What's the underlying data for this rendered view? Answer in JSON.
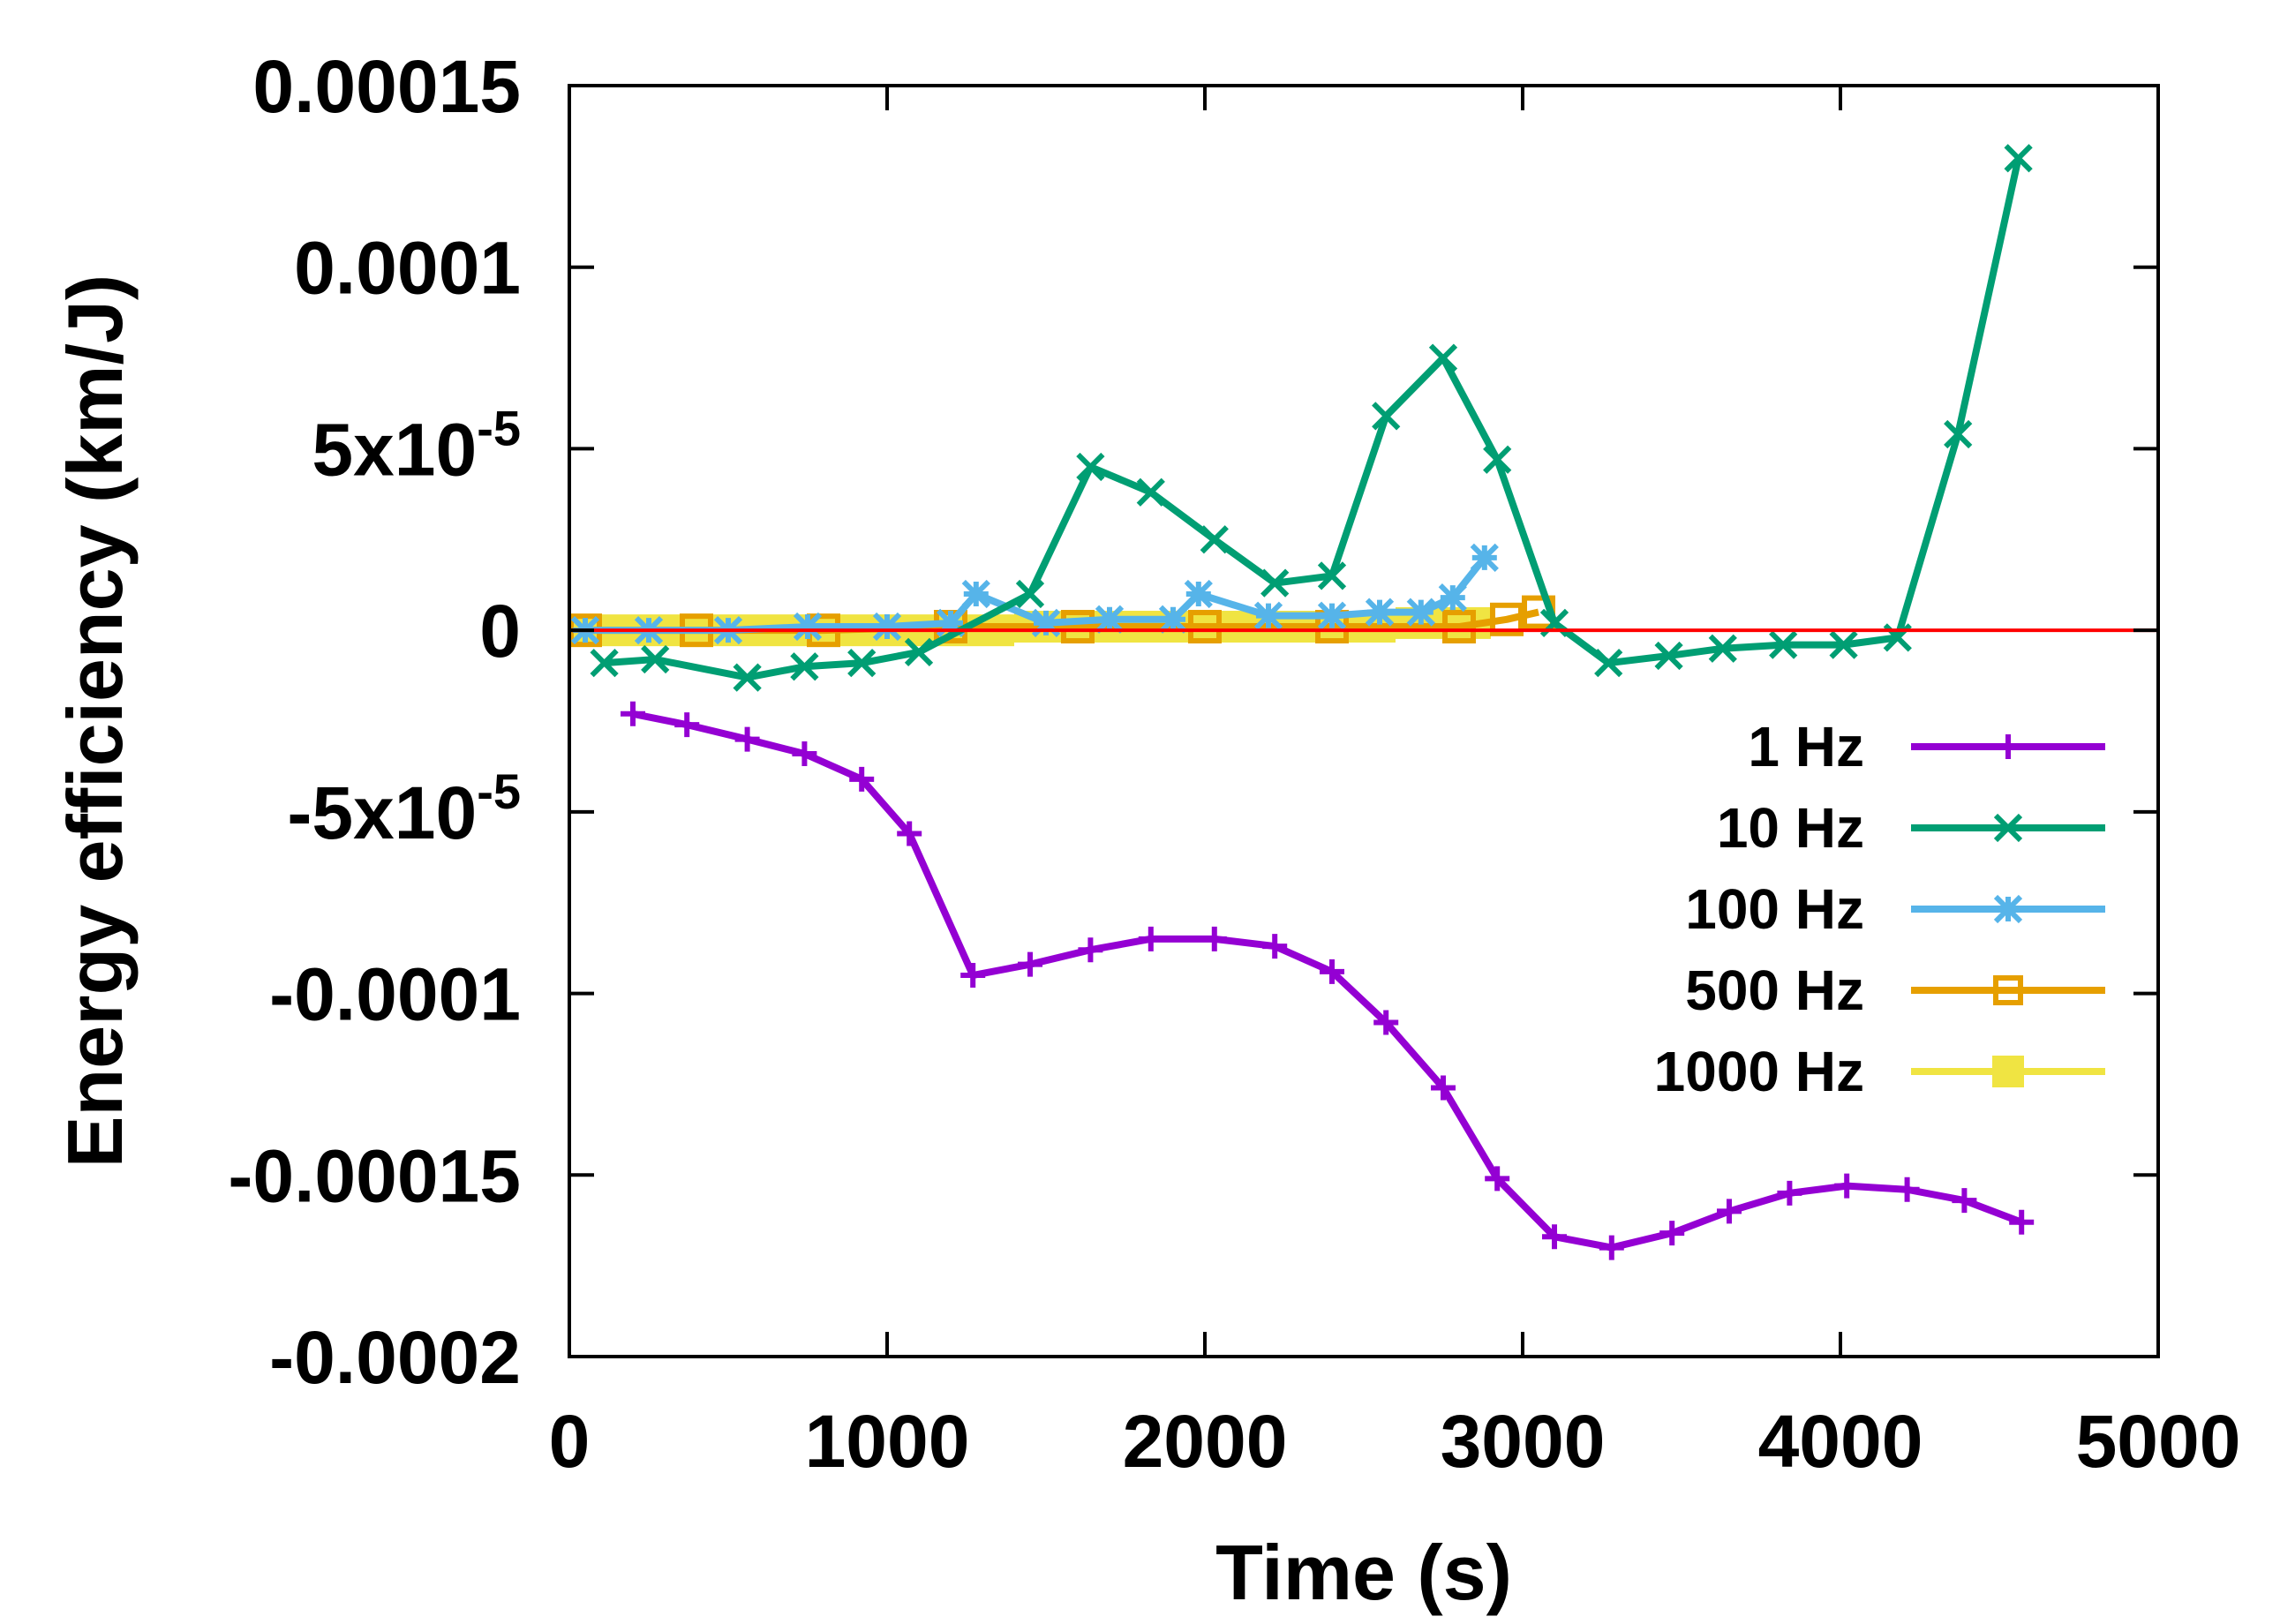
{
  "chart_data": {
    "type": "line",
    "title": "",
    "xlabel": "Time (s)",
    "ylabel": "Energy efficiency (km/J)",
    "xlim": [
      0,
      5000
    ],
    "ylim": [
      -0.0002,
      0.00015
    ],
    "grid": false,
    "legend_position": "bottom-right",
    "zero_line_color": "#ff0000",
    "x_ticks": [
      {
        "value": 0,
        "label": "0"
      },
      {
        "value": 1000,
        "label": "1000"
      },
      {
        "value": 2000,
        "label": "2000"
      },
      {
        "value": 3000,
        "label": "3000"
      },
      {
        "value": 4000,
        "label": "4000"
      },
      {
        "value": 5000,
        "label": "5000"
      }
    ],
    "y_ticks": [
      {
        "value": 0.00015,
        "label": "0.00015",
        "base": "",
        "exp": ""
      },
      {
        "value": 0.0001,
        "label": "0.0001",
        "base": "",
        "exp": ""
      },
      {
        "value": 5e-05,
        "label": "",
        "base": "5x10",
        "exp": "-5"
      },
      {
        "value": 0,
        "label": "0",
        "base": "",
        "exp": ""
      },
      {
        "value": -5e-05,
        "label": "",
        "base": "-5x10",
        "exp": "-5"
      },
      {
        "value": -0.0001,
        "label": "-0.0001",
        "base": "",
        "exp": ""
      },
      {
        "value": -0.00015,
        "label": "-0.00015",
        "base": "",
        "exp": ""
      },
      {
        "value": -0.0002,
        "label": "-0.0002",
        "base": "",
        "exp": ""
      }
    ],
    "series": [
      {
        "name": "1 Hz",
        "color": "#9400d3",
        "marker": "plus",
        "x": [
          200,
          370,
          560,
          740,
          920,
          1070,
          1270,
          1450,
          1640,
          1830,
          2030,
          2220,
          2400,
          2570,
          2750,
          2920,
          3100,
          3280,
          3470,
          3650,
          3840,
          4020,
          4210,
          4390,
          4570
        ],
        "values": [
          -2.3e-05,
          -2.6e-05,
          -3e-05,
          -3.4e-05,
          -4.1e-05,
          -5.6e-05,
          -9.5e-05,
          -9.2e-05,
          -8.8e-05,
          -8.5e-05,
          -8.5e-05,
          -8.7e-05,
          -9.4e-05,
          -0.000108,
          -0.000126,
          -0.000151,
          -0.000167,
          -0.00017,
          -0.000166,
          -0.00016,
          -0.000155,
          -0.000153,
          -0.000154,
          -0.000157,
          -0.000163
        ]
      },
      {
        "name": "10 Hz",
        "color": "#009e73",
        "marker": "x",
        "x": [
          110,
          270,
          560,
          740,
          920,
          1100,
          1450,
          1640,
          1830,
          2030,
          2220,
          2400,
          2570,
          2750,
          2920,
          3100,
          3270,
          3460,
          3630,
          3820,
          4010,
          4180,
          4370,
          4560
        ],
        "values": [
          -9e-06,
          -8e-06,
          -1.3e-05,
          -1e-05,
          -9e-06,
          -6e-06,
          1e-05,
          4.5e-05,
          3.8e-05,
          2.5e-05,
          1.3e-05,
          1.5e-05,
          5.9e-05,
          7.5e-05,
          4.7e-05,
          2e-06,
          -9e-06,
          -7e-06,
          -5e-06,
          -4e-06,
          -4e-06,
          -2e-06,
          5.4e-05,
          0.00013
        ]
      },
      {
        "name": "100 Hz",
        "color": "#56b4e9",
        "marker": "star",
        "x": [
          50,
          250,
          500,
          750,
          1000,
          1200,
          1280,
          1500,
          1700,
          1900,
          1980,
          2200,
          2400,
          2550,
          2680,
          2780,
          2880
        ],
        "values": [
          0,
          0,
          0,
          1e-06,
          1e-06,
          2e-06,
          1e-05,
          2e-06,
          3e-06,
          3e-06,
          1e-05,
          4e-06,
          4e-06,
          5e-06,
          5e-06,
          9e-06,
          2e-05
        ]
      },
      {
        "name": "500 Hz",
        "color": "#e69f00",
        "marker": "square-open",
        "x": [
          50,
          400,
          800,
          1200,
          1600,
          2000,
          2400,
          2800,
          2950,
          3050
        ],
        "values": [
          0,
          0,
          0,
          1e-06,
          1e-06,
          1e-06,
          1e-06,
          1e-06,
          3e-06,
          5e-06
        ]
      },
      {
        "name": "1000 Hz",
        "color": "#f0e442",
        "marker": "square-filled",
        "x": [
          50,
          150,
          250,
          350,
          450,
          550,
          650,
          750,
          850,
          950,
          1050,
          1150,
          1250,
          1350,
          1450,
          1550,
          1650,
          1750,
          1850,
          1950,
          2050,
          2150,
          2250,
          2350,
          2450,
          2550,
          2650,
          2750,
          2850
        ],
        "values": [
          0,
          0,
          0,
          0,
          0,
          0,
          0,
          0,
          0,
          0,
          0,
          0,
          0,
          0,
          1e-06,
          1e-06,
          1e-06,
          1e-06,
          1e-06,
          1e-06,
          1e-06,
          1e-06,
          1e-06,
          1e-06,
          1e-06,
          1e-06,
          2e-06,
          2e-06,
          2e-06
        ]
      }
    ]
  }
}
